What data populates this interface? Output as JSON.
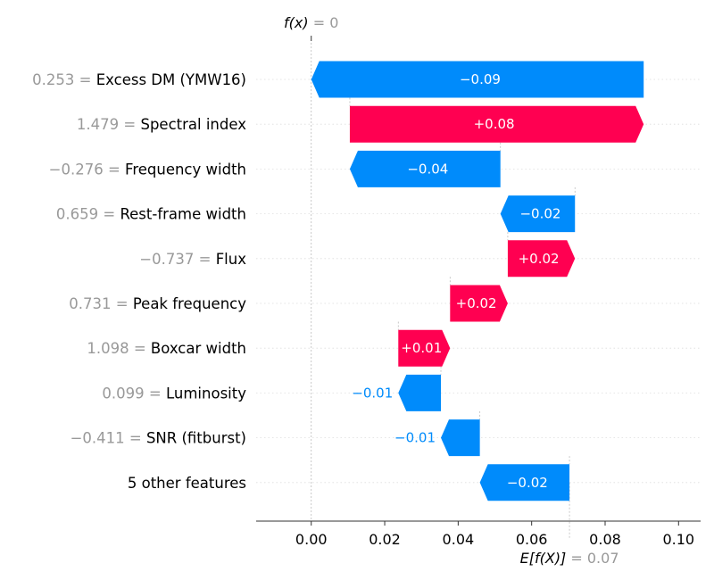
{
  "chart_data": {
    "type": "waterfall",
    "title": "",
    "xlabel": "",
    "ylabel": "",
    "xlim": [
      -0.015,
      0.106
    ],
    "xticks": [
      0.0,
      0.02,
      0.04,
      0.06,
      0.08,
      0.1
    ],
    "xtick_labels": [
      "0.00",
      "0.02",
      "0.04",
      "0.06",
      "0.08",
      "0.10"
    ],
    "top_annotation": {
      "label": "f(x)",
      "eq": "= 0",
      "value": 0.0
    },
    "bottom_annotation": {
      "label": "E[f(X)]",
      "eq": "= 0.07",
      "value": 0.0703
    },
    "colors": {
      "positive": "#ff0051",
      "negative": "#008bfb",
      "value_text": "#999999",
      "grid": "#cccccc"
    },
    "features": [
      {
        "value": "0.253",
        "name": "Excess DM (YMW16)",
        "contribution": -0.09,
        "label": "−0.09",
        "start": 0.0905,
        "end": 0.0
      },
      {
        "value": "1.479",
        "name": "Spectral index",
        "contribution": 0.08,
        "label": "+0.08",
        "start": 0.0105,
        "end": 0.0905
      },
      {
        "value": "−0.276",
        "name": "Frequency width",
        "contribution": -0.04,
        "label": "−0.04",
        "start": 0.0515,
        "end": 0.0105
      },
      {
        "value": "0.659",
        "name": "Rest-frame width",
        "contribution": -0.02,
        "label": "−0.02",
        "start": 0.0718,
        "end": 0.0515
      },
      {
        "value": "−0.737",
        "name": "Flux",
        "contribution": 0.02,
        "label": "+0.02",
        "start": 0.0535,
        "end": 0.0718
      },
      {
        "value": "0.731",
        "name": "Peak frequency",
        "contribution": 0.02,
        "label": "+0.02",
        "start": 0.0378,
        "end": 0.0535
      },
      {
        "value": "1.098",
        "name": "Boxcar width",
        "contribution": 0.01,
        "label": "+0.01",
        "start": 0.0237,
        "end": 0.0378
      },
      {
        "value": "0.099",
        "name": "Luminosity",
        "contribution": -0.01,
        "label": "−0.01",
        "start": 0.0353,
        "end": 0.0237
      },
      {
        "value": "−0.411",
        "name": "SNR (fitburst)",
        "contribution": -0.01,
        "label": "−0.01",
        "start": 0.0459,
        "end": 0.0353
      },
      {
        "value": "",
        "name": "5 other features",
        "contribution": -0.02,
        "label": "−0.02",
        "start": 0.0703,
        "end": 0.0459
      }
    ]
  }
}
